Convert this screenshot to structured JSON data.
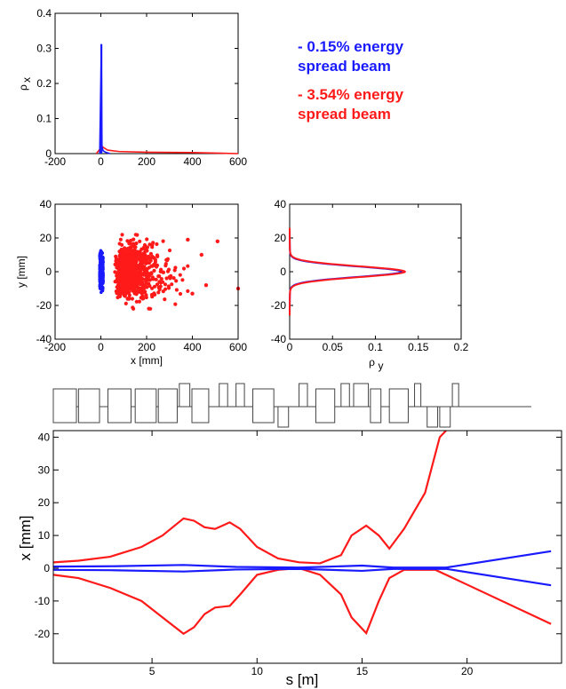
{
  "colors": {
    "blue": "#1a1aff",
    "red": "#ff1a1a",
    "axis": "#000000",
    "magnet": "#444444"
  },
  "legend": {
    "entries": [
      {
        "line1": "- 0.15% energy",
        "line2": "spread beam",
        "color": "#1a1aff"
      },
      {
        "line1": "- 3.54% energy",
        "line2": "spread beam",
        "color": "#ff1a1a"
      }
    ]
  },
  "chart_data": [
    {
      "id": "rho-x",
      "type": "area",
      "xlim": [
        -200,
        600
      ],
      "ylim": [
        0,
        0.4
      ],
      "xticks": [
        "-200",
        "0",
        "200",
        "400",
        "600"
      ],
      "yticks": [
        "0",
        "0.1",
        "0.2",
        "0.3",
        "0.4"
      ],
      "ylabel": "ρ",
      "ylabel_sub": "x",
      "xlabel": "",
      "series": [
        {
          "color": "blue",
          "x": [
            -5,
            0,
            2,
            5,
            10,
            20,
            40
          ],
          "y": [
            0,
            0.215,
            0.312,
            0.02,
            0.008,
            0.004,
            0.0
          ]
        },
        {
          "color": "red",
          "x": [
            -20,
            -5,
            0,
            10,
            30,
            80,
            200,
            400,
            600
          ],
          "y": [
            0,
            0.012,
            0.025,
            0.018,
            0.01,
            0.006,
            0.004,
            0.003,
            0.0
          ]
        }
      ]
    },
    {
      "id": "xy-scatter",
      "type": "scatter",
      "xlim": [
        -200,
        600
      ],
      "ylim": [
        -40,
        40
      ],
      "xticks": [
        "-200",
        "0",
        "200",
        "400",
        "600"
      ],
      "yticks": [
        "-40",
        "-20",
        "0",
        "20",
        "40"
      ],
      "xlabel": "x [mm]",
      "ylabel": "y [mm]",
      "blue_cloud": {
        "x_range": [
          -5,
          10
        ],
        "y_range": [
          -13,
          13
        ]
      },
      "red_cloud": {
        "x_center": 90,
        "x_spread": 80,
        "y_spread": 7,
        "outliers": [
          [
            600,
            -10
          ],
          [
            510,
            18
          ],
          [
            460,
            -8
          ],
          [
            440,
            10
          ],
          [
            400,
            -13
          ],
          [
            380,
            19
          ]
        ]
      }
    },
    {
      "id": "rho-y",
      "type": "line",
      "xlim": [
        0,
        0.2
      ],
      "ylim": [
        -40,
        40
      ],
      "xticks": [
        "0",
        "0.05",
        "0.1",
        "0.15",
        "0.2"
      ],
      "yticks": [
        "-40",
        "-20",
        "0",
        "20",
        "40"
      ],
      "xlabel": "ρ",
      "xlabel_sub": "y",
      "series": [
        {
          "color": "blue",
          "peak": 0.128,
          "sigma": 3.1,
          "ylim": [
            -24,
            24
          ]
        },
        {
          "color": "red",
          "peak": 0.132,
          "sigma": 3.2,
          "ylim": [
            -26,
            26
          ]
        }
      ]
    },
    {
      "id": "envelope",
      "type": "line",
      "xlim": [
        0.3,
        24.5
      ],
      "ylim": [
        -29,
        42
      ],
      "xticks": [
        "5",
        "10",
        "15",
        "20"
      ],
      "yticks": [
        "-20",
        "-10",
        "0",
        "10",
        "20",
        "30",
        "40"
      ],
      "xlabel": "s [m]",
      "ylabel": "x [mm]",
      "series": [
        {
          "color": "red",
          "name": "",
          "x": [
            0.3,
            1.5,
            3,
            4.5,
            5.5,
            6.5,
            7,
            7.5,
            8,
            8.7,
            9.2,
            10,
            11,
            12,
            13,
            14,
            14.5,
            15.2,
            15.8,
            16.3,
            17,
            18,
            18.7,
            19
          ],
          "y": [
            1.8,
            2.3,
            3.5,
            6.5,
            10,
            15.2,
            14.5,
            12.5,
            12,
            14,
            12,
            6.5,
            3,
            1.8,
            1.5,
            4,
            10,
            13,
            10,
            6,
            12,
            23,
            40,
            42
          ]
        },
        {
          "color": "red",
          "name": "",
          "x": [
            0.3,
            1.5,
            3,
            4.5,
            5.5,
            6.5,
            7,
            7.5,
            8,
            8.7,
            9.2,
            10,
            11,
            12,
            13,
            14,
            14.5,
            15.2,
            15.8,
            16.3,
            17,
            18.5,
            20,
            24
          ],
          "y": [
            -2,
            -3,
            -6,
            -10,
            -15,
            -20,
            -18,
            -14,
            -12,
            -11.5,
            -8,
            -2,
            -0.5,
            0,
            -2,
            -8,
            -15,
            -19.8,
            -10,
            -3,
            -0.5,
            -0.5,
            -5,
            -17
          ]
        },
        {
          "color": "blue",
          "name": "",
          "x": [
            0.3,
            3,
            6.5,
            9,
            12,
            15,
            16.5,
            18,
            19,
            24
          ],
          "y": [
            0.5,
            0.6,
            1,
            0.4,
            0.2,
            0.8,
            0.2,
            0.2,
            0.2,
            5.2
          ]
        },
        {
          "color": "blue",
          "name": "",
          "x": [
            0.3,
            3,
            6.5,
            9,
            12,
            15,
            16.5,
            18,
            19,
            24
          ],
          "y": [
            -0.5,
            -0.6,
            -1,
            -0.4,
            -0.2,
            -0.8,
            -0.2,
            -0.2,
            -0.2,
            -5.2
          ]
        }
      ],
      "lattice": [
        {
          "s0": 0.3,
          "s1": 1.4,
          "kind": "down"
        },
        {
          "s0": 1.5,
          "s1": 2.5,
          "kind": "down"
        },
        {
          "s0": 2.9,
          "s1": 4.0,
          "kind": "down"
        },
        {
          "s0": 4.2,
          "s1": 5.2,
          "kind": "down"
        },
        {
          "s0": 5.3,
          "s1": 6.2,
          "kind": "down"
        },
        {
          "s0": 6.3,
          "s1": 6.8,
          "kind": "up"
        },
        {
          "s0": 6.9,
          "s1": 7.7,
          "kind": "down"
        },
        {
          "s0": 8.2,
          "s1": 8.6,
          "kind": "up"
        },
        {
          "s0": 9.0,
          "s1": 9.4,
          "kind": "up"
        },
        {
          "s0": 9.8,
          "s1": 10.8,
          "kind": "down"
        },
        {
          "s0": 11.0,
          "s1": 11.5,
          "kind": "down-small"
        },
        {
          "s0": 12.0,
          "s1": 12.4,
          "kind": "up"
        },
        {
          "s0": 12.8,
          "s1": 13.7,
          "kind": "down"
        },
        {
          "s0": 14.0,
          "s1": 14.4,
          "kind": "up"
        },
        {
          "s0": 14.6,
          "s1": 15.3,
          "kind": "up"
        },
        {
          "s0": 15.4,
          "s1": 15.9,
          "kind": "down"
        },
        {
          "s0": 16.3,
          "s1": 17.2,
          "kind": "down"
        },
        {
          "s0": 17.5,
          "s1": 17.8,
          "kind": "up"
        },
        {
          "s0": 18.1,
          "s1": 18.6,
          "kind": "down-small"
        },
        {
          "s0": 18.7,
          "s1": 19.2,
          "kind": "down-small"
        },
        {
          "s0": 19.3,
          "s1": 19.6,
          "kind": "up"
        }
      ]
    }
  ]
}
